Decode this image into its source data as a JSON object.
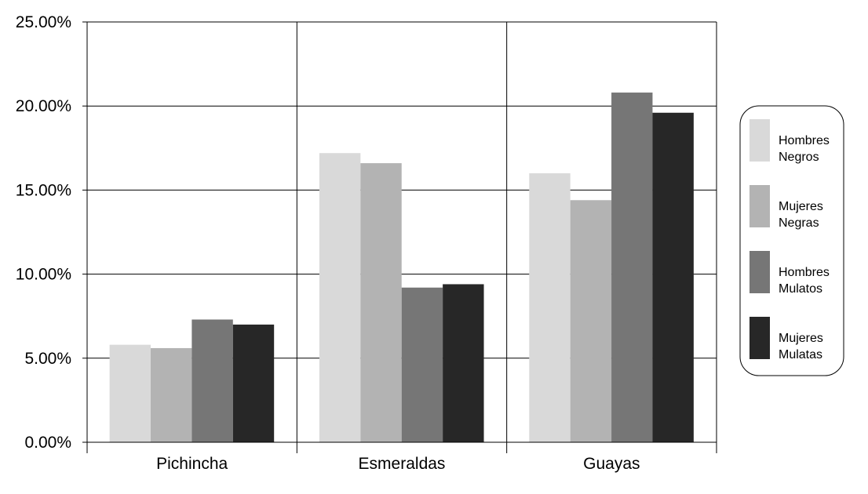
{
  "chart_data": {
    "type": "bar",
    "categories": [
      "Pichincha",
      "Esmeraldas",
      "Guayas"
    ],
    "series": [
      {
        "name": "Hombres Negros",
        "name_lines": [
          "Hombres",
          "Negros"
        ],
        "color": "#d9d9d9",
        "values": [
          5.8,
          17.2,
          16.0
        ]
      },
      {
        "name": "Mujeres Negras",
        "name_lines": [
          "Mujeres",
          "Negras"
        ],
        "color": "#b3b3b3",
        "values": [
          5.6,
          16.6,
          14.4
        ]
      },
      {
        "name": "Hombres Mulatos",
        "name_lines": [
          "Hombres",
          "Mulatos"
        ],
        "color": "#767676",
        "values": [
          7.3,
          9.2,
          20.8
        ]
      },
      {
        "name": "Mujeres Mulatas",
        "name_lines": [
          "Mujeres",
          "Mulatas"
        ],
        "color": "#272727",
        "values": [
          7.0,
          9.4,
          19.6
        ]
      }
    ],
    "ylim": [
      0,
      25
    ],
    "yticks": [
      0,
      5,
      10,
      15,
      20,
      25
    ],
    "ytick_labels": [
      "0.00%",
      "5.00%",
      "10.00%",
      "15.00%",
      "20.00%",
      "25.00%"
    ],
    "title": "",
    "xlabel": "",
    "ylabel": "",
    "grid": true,
    "legend_position": "right"
  }
}
